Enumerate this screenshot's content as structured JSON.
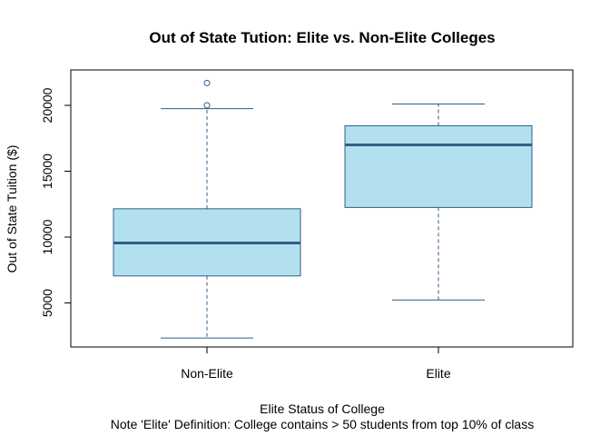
{
  "chart_data": {
    "type": "box",
    "title": "Out of State Tution: Elite vs. Non-Elite Colleges",
    "xlabel": "Elite Status of College",
    "note": "Note 'Elite' Definition: College contains > 50 students from top 10% of class",
    "ylabel": "Out of State Tuition ($)",
    "yticks": [
      5000,
      10000,
      15000,
      20000
    ],
    "ylim": [
      2000,
      22500
    ],
    "categories": [
      "Non-Elite",
      "Elite"
    ],
    "boxes": [
      {
        "name": "Non-Elite",
        "whisker_low": 2340,
        "q1": 7050,
        "median": 9550,
        "q3": 12150,
        "whisker_high": 19750,
        "outliers": [
          20000,
          21700
        ]
      },
      {
        "name": "Elite",
        "whisker_low": 5220,
        "q1": 12250,
        "median": 17000,
        "q3": 18450,
        "whisker_high": 20100,
        "outliers": []
      }
    ],
    "colors": {
      "box_fill": "#b3e0ee",
      "box_stroke": "#2f5f8a",
      "median": "#2f5f8a",
      "axis": "#000000"
    },
    "grid": false,
    "legend": "none"
  }
}
